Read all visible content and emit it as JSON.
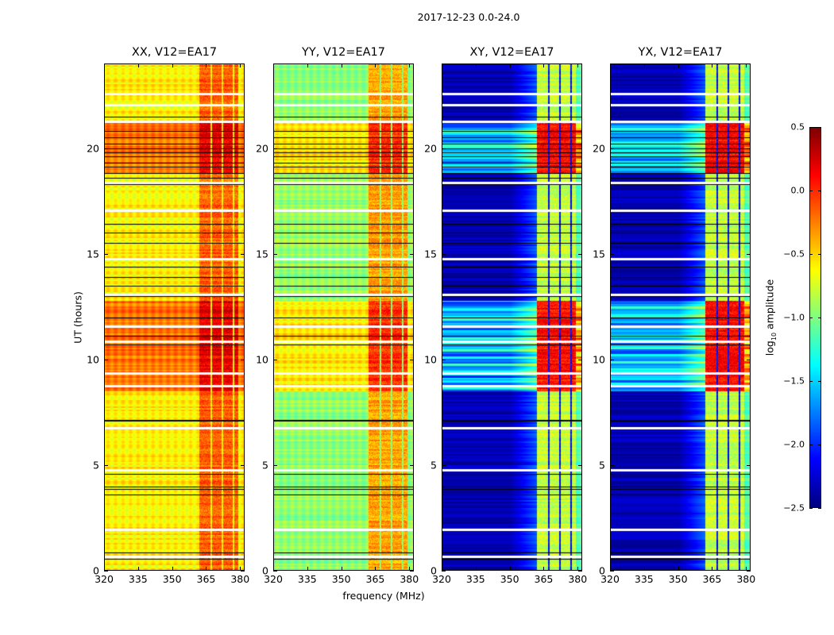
{
  "chart_data": {
    "type": "heatmap",
    "title": "2017-12-23 0.0-24.0",
    "xlabel": "frequency (MHz)",
    "ylabel": "UT (hours)",
    "xlim": [
      320,
      382
    ],
    "ylim": [
      0,
      24
    ],
    "xticks": [
      320,
      335,
      350,
      365,
      380
    ],
    "yticks": [
      0,
      5,
      10,
      15,
      20
    ],
    "panels": [
      {
        "title": "XX, V12=EA17",
        "polarization": "XX",
        "baseline_level": -0.6,
        "band_level": -0.15,
        "storm_level": -0.05
      },
      {
        "title": "YY, V12=EA17",
        "polarization": "YY",
        "baseline_level": -0.95,
        "band_level": -0.35,
        "storm_level": -0.4
      },
      {
        "title": "XY, V12=EA17",
        "polarization": "XY",
        "baseline_level": -2.35,
        "band_level": -0.8,
        "storm_level": -1.4
      },
      {
        "title": "YX, V12=EA17",
        "polarization": "YX",
        "baseline_level": -2.35,
        "band_level": -0.8,
        "storm_level": -1.4
      }
    ],
    "rfi_band_mhz": [
      362,
      379
    ],
    "rfi_channel_gaps_mhz": [
      367,
      372,
      377
    ],
    "high_amplitude_intervals_ut": [
      [
        18.8,
        21.2
      ],
      [
        8.5,
        12.8
      ]
    ],
    "flagged_black_rows_ut": [
      0.55,
      0.85,
      3.6,
      3.85,
      4.0,
      4.6,
      7.1,
      7.15,
      10.7,
      11.1,
      12.0,
      13.0,
      13.5,
      13.9,
      14.4,
      15.5,
      16.0,
      16.4,
      18.3,
      18.6,
      18.8,
      19.1,
      19.3,
      19.6,
      19.8,
      20.0,
      20.2,
      20.5,
      20.8,
      21.5
    ],
    "flagged_white_rows_ut": [
      0.7,
      2.0,
      4.8,
      6.8,
      8.8,
      9.4,
      10.9,
      11.6,
      13.1,
      14.8,
      17.1,
      18.4,
      21.3,
      22.1,
      22.6
    ],
    "colorbar": {
      "label": "log10 amplitude",
      "label_main": "log",
      "label_sub": "10",
      "label_rest": " amplitude",
      "colormap": "jet",
      "range": [
        -2.5,
        0.5
      ],
      "ticks": [
        "0.5",
        "0.0",
        "−0.5",
        "−1.0",
        "−1.5",
        "−2.0",
        "−2.5"
      ],
      "tick_values": [
        0.5,
        0.0,
        -0.5,
        -1.0,
        -1.5,
        -2.0,
        -2.5
      ]
    }
  }
}
